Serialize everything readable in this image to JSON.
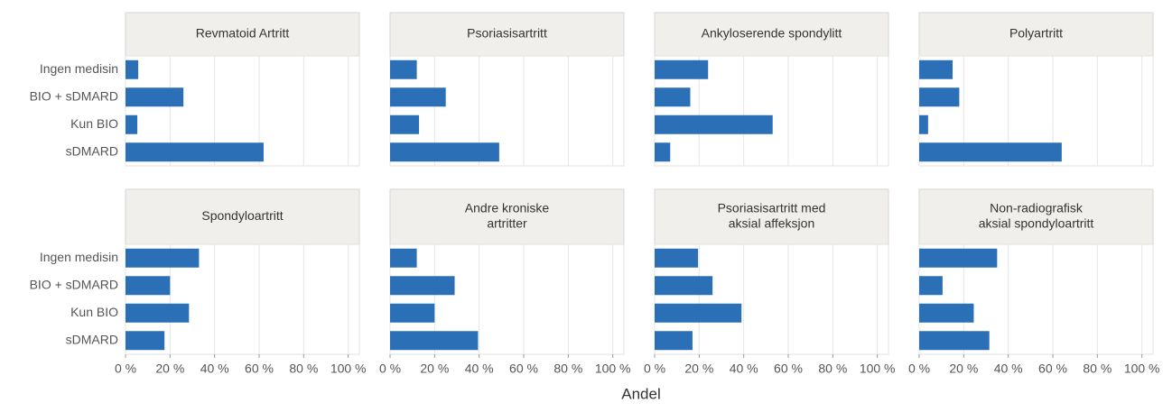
{
  "xlabel": "Andel",
  "categories": [
    "Ingen medisin",
    "BIO + sDMARD",
    "Kun BIO",
    "sDMARD"
  ],
  "chart_data": [
    {
      "type": "bar",
      "orientation": "horizontal",
      "title": [
        "Revmatoid Artritt"
      ],
      "values": [
        5.7,
        26,
        5.3,
        62
      ],
      "color": "#2b70b6",
      "xlim": [
        0,
        105
      ],
      "xticks": [
        0,
        20,
        40,
        60,
        80,
        100
      ],
      "grid": true
    },
    {
      "type": "bar",
      "orientation": "horizontal",
      "title": [
        "Psoriasisartritt"
      ],
      "values": [
        12,
        25,
        13,
        49
      ],
      "color": "#2b70b6",
      "xlim": [
        0,
        105
      ],
      "xticks": [
        0,
        20,
        40,
        60,
        80,
        100
      ],
      "grid": true
    },
    {
      "type": "bar",
      "orientation": "horizontal",
      "title": [
        "Ankyloserende spondylitt"
      ],
      "values": [
        24,
        16,
        53,
        7
      ],
      "color": "#2b70b6",
      "xlim": [
        0,
        105
      ],
      "xticks": [
        0,
        20,
        40,
        60,
        80,
        100
      ],
      "grid": true
    },
    {
      "type": "bar",
      "orientation": "horizontal",
      "title": [
        "Polyartritt"
      ],
      "values": [
        15,
        18,
        4,
        64
      ],
      "color": "#2b70b6",
      "xlim": [
        0,
        105
      ],
      "xticks": [
        0,
        20,
        40,
        60,
        80,
        100
      ],
      "grid": true
    },
    {
      "type": "bar",
      "orientation": "horizontal",
      "title": [
        "Spondyloartritt"
      ],
      "values": [
        33,
        20,
        28.5,
        17.5
      ],
      "color": "#2b70b6",
      "xlim": [
        0,
        105
      ],
      "xticks": [
        {
          "value": 0,
          "label": "0 %"
        },
        {
          "value": 20,
          "label": "20 %"
        },
        {
          "value": 40,
          "label": "40 %"
        },
        {
          "value": 60,
          "label": "60 %"
        },
        {
          "value": 80,
          "label": "80 %"
        },
        {
          "value": 100,
          "label": "100 %"
        }
      ],
      "grid": true
    },
    {
      "type": "bar",
      "orientation": "horizontal",
      "title": [
        "Andre kroniske",
        "artritter"
      ],
      "values": [
        12,
        29,
        20,
        39.5
      ],
      "color": "#2b70b6",
      "xlim": [
        0,
        105
      ],
      "xticks": [
        {
          "value": 0,
          "label": "0 %"
        },
        {
          "value": 20,
          "label": "20 %"
        },
        {
          "value": 40,
          "label": "40 %"
        },
        {
          "value": 60,
          "label": "60 %"
        },
        {
          "value": 80,
          "label": "80 %"
        },
        {
          "value": 100,
          "label": "100 %"
        }
      ],
      "grid": true
    },
    {
      "type": "bar",
      "orientation": "horizontal",
      "title": [
        "Psoriasisartritt med",
        "aksial affeksjon"
      ],
      "values": [
        19.5,
        26,
        39,
        17
      ],
      "color": "#2b70b6",
      "xlim": [
        0,
        105
      ],
      "xticks": [
        {
          "value": 0,
          "label": "0 %"
        },
        {
          "value": 20,
          "label": "20 %"
        },
        {
          "value": 40,
          "label": "40 %"
        },
        {
          "value": 60,
          "label": "60 %"
        },
        {
          "value": 80,
          "label": "80 %"
        },
        {
          "value": 100,
          "label": "100 %"
        }
      ],
      "grid": true
    },
    {
      "type": "bar",
      "orientation": "horizontal",
      "title": [
        "Non-radiografisk",
        "aksial spondyloartritt"
      ],
      "values": [
        35,
        10.5,
        24.5,
        31.5
      ],
      "color": "#2b70b6",
      "xlim": [
        0,
        105
      ],
      "xticks": [
        {
          "value": 0,
          "label": "0 %"
        },
        {
          "value": 20,
          "label": "20 %"
        },
        {
          "value": 40,
          "label": "40 %"
        },
        {
          "value": 60,
          "label": "60 %"
        },
        {
          "value": 80,
          "label": "80 %"
        },
        {
          "value": 100,
          "label": "100 %"
        }
      ],
      "grid": true
    }
  ]
}
